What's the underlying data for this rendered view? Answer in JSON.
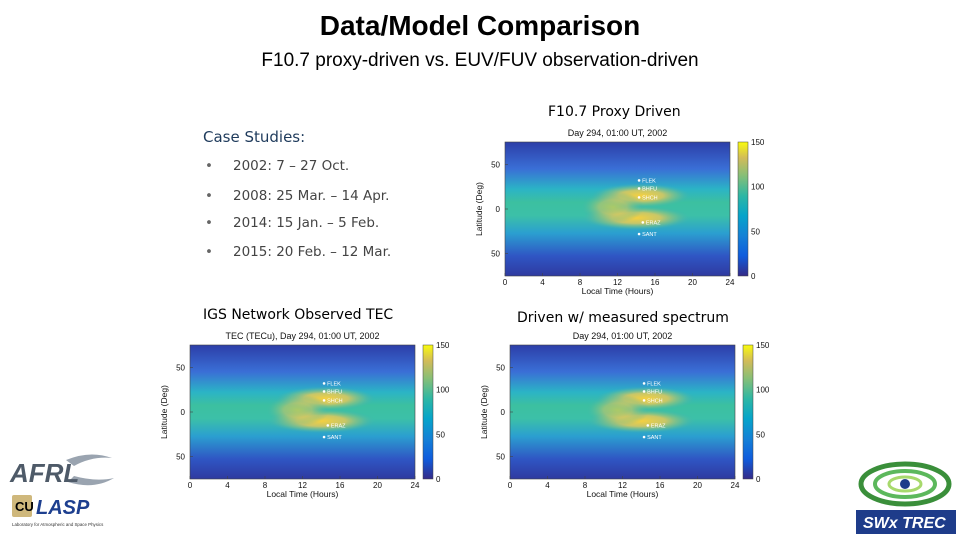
{
  "slide": {
    "title": "Data/Model Comparison",
    "subtitle": "F10.7 proxy-driven vs. EUV/FUV observation-driven"
  },
  "case_studies": {
    "heading": "Case Studies:",
    "items": [
      {
        "bullet": "•",
        "text": "2002:  7 – 27 Oct."
      },
      {
        "bullet": "•",
        "text": "2008:  25 Mar. – 14 Apr."
      },
      {
        "bullet": "•",
        "text": "2014:  15 Jan. – 5 Feb."
      },
      {
        "bullet": "•",
        "text": "2015:  20 Feb. – 12 Mar."
      }
    ]
  },
  "panel_labels": {
    "proxy": "F10.7 Proxy Driven",
    "igs": "IGS Network Observed TEC",
    "measured": "Driven w/ measured spectrum"
  },
  "logos": {
    "afrl": "AFRL",
    "lasp": "LASP",
    "lasp_caption": "Laboratory for Atmospheric and Space Physics",
    "swx": "SWx TREC"
  },
  "chart_data": [
    {
      "id": "proxy",
      "type": "heatmap",
      "title": "Day 294, 01:00 UT, 2002",
      "xlabel": "Local Time (Hours)",
      "ylabel": "Latitude (Deg)",
      "xlim": [
        0,
        24
      ],
      "ylim": [
        -75,
        75
      ],
      "xticks": [
        "0",
        "4",
        "8",
        "12",
        "16",
        "20",
        "24"
      ],
      "yticks": [
        "50",
        "0",
        "50"
      ],
      "colorbar": {
        "range": [
          0,
          150
        ],
        "ticks": [
          "150",
          "100",
          "50",
          "0"
        ]
      },
      "stations": [
        {
          "name": "FLEK",
          "lt": 14.3,
          "lat": 32
        },
        {
          "name": "BHFU",
          "lt": 14.3,
          "lat": 23
        },
        {
          "name": "SHCH",
          "lt": 14.3,
          "lat": 13
        },
        {
          "name": "ERAZ",
          "lt": 14.7,
          "lat": -15
        },
        {
          "name": "SANT",
          "lt": 14.3,
          "lat": -28
        }
      ]
    },
    {
      "id": "igs",
      "type": "heatmap",
      "title": "TEC (TECu), Day 294, 01:00 UT, 2002",
      "xlabel": "Local Time (Hours)",
      "ylabel": "Latitude (Deg)",
      "xlim": [
        0,
        24
      ],
      "ylim": [
        -75,
        75
      ],
      "xticks": [
        "0",
        "4",
        "8",
        "12",
        "16",
        "20",
        "24"
      ],
      "yticks": [
        "50",
        "0",
        "50"
      ],
      "colorbar": {
        "range": [
          0,
          150
        ],
        "ticks": [
          "150",
          "100",
          "50",
          "0"
        ]
      },
      "stations": [
        {
          "name": "FLEK",
          "lt": 14.3,
          "lat": 32
        },
        {
          "name": "BHFU",
          "lt": 14.3,
          "lat": 23
        },
        {
          "name": "SHCH",
          "lt": 14.3,
          "lat": 13
        },
        {
          "name": "ERAZ",
          "lt": 14.7,
          "lat": -15
        },
        {
          "name": "SANT",
          "lt": 14.3,
          "lat": -28
        }
      ]
    },
    {
      "id": "measured",
      "type": "heatmap",
      "title": "Day 294, 01:00 UT, 2002",
      "xlabel": "Local Time (Hours)",
      "ylabel": "Latitude (Deg)",
      "xlim": [
        0,
        24
      ],
      "ylim": [
        -75,
        75
      ],
      "xticks": [
        "0",
        "4",
        "8",
        "12",
        "16",
        "20",
        "24"
      ],
      "yticks": [
        "50",
        "0",
        "50"
      ],
      "colorbar": {
        "range": [
          0,
          150
        ],
        "ticks": [
          "150",
          "100",
          "50",
          "0"
        ]
      },
      "stations": [
        {
          "name": "FLEK",
          "lt": 14.3,
          "lat": 32
        },
        {
          "name": "BHFU",
          "lt": 14.3,
          "lat": 23
        },
        {
          "name": "SHCH",
          "lt": 14.3,
          "lat": 13
        },
        {
          "name": "ERAZ",
          "lt": 14.7,
          "lat": -15
        },
        {
          "name": "SANT",
          "lt": 14.3,
          "lat": -28
        }
      ]
    }
  ]
}
